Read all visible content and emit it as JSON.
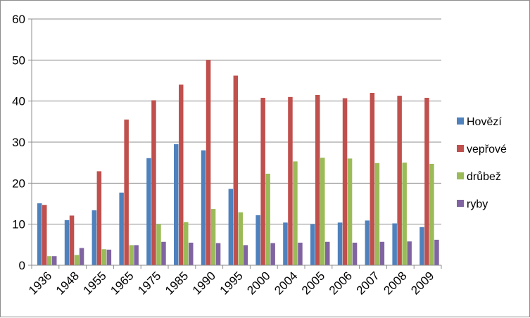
{
  "chart_data": {
    "type": "bar",
    "title": "",
    "xlabel": "",
    "ylabel": "",
    "ylim": [
      0,
      60
    ],
    "yticks": [
      "0",
      "10",
      "20",
      "30",
      "40",
      "50",
      "60"
    ],
    "grid": true,
    "legend_position": "right",
    "categories": [
      "1936",
      "1948",
      "1955",
      "1965",
      "1975",
      "1985",
      "1990",
      "1995",
      "2000",
      "2004",
      "2005",
      "2006",
      "2007",
      "2008",
      "2009"
    ],
    "series": [
      {
        "name": "Hovězí",
        "color": "#4f81bd",
        "values": [
          15.1,
          11.0,
          13.4,
          17.7,
          26.1,
          29.5,
          28.0,
          18.6,
          12.2,
          10.4,
          10.0,
          10.4,
          10.9,
          10.2,
          9.3
        ]
      },
      {
        "name": "vepřové",
        "color": "#c0504d",
        "values": [
          14.7,
          12.1,
          22.9,
          35.5,
          40.2,
          44.0,
          50.0,
          46.2,
          40.8,
          41.0,
          41.5,
          40.7,
          42.0,
          41.3,
          40.8
        ]
      },
      {
        "name": "drůbež",
        "color": "#9bbb59",
        "values": [
          2.2,
          2.5,
          3.9,
          4.9,
          10.0,
          10.5,
          13.7,
          12.9,
          22.3,
          25.3,
          26.2,
          26.0,
          24.9,
          25.0,
          24.7
        ]
      },
      {
        "name": "ryby",
        "color": "#8064a2",
        "values": [
          2.2,
          4.2,
          3.8,
          4.9,
          5.7,
          5.5,
          5.4,
          4.9,
          5.4,
          5.5,
          5.7,
          5.5,
          5.7,
          5.8,
          6.2
        ]
      }
    ]
  }
}
